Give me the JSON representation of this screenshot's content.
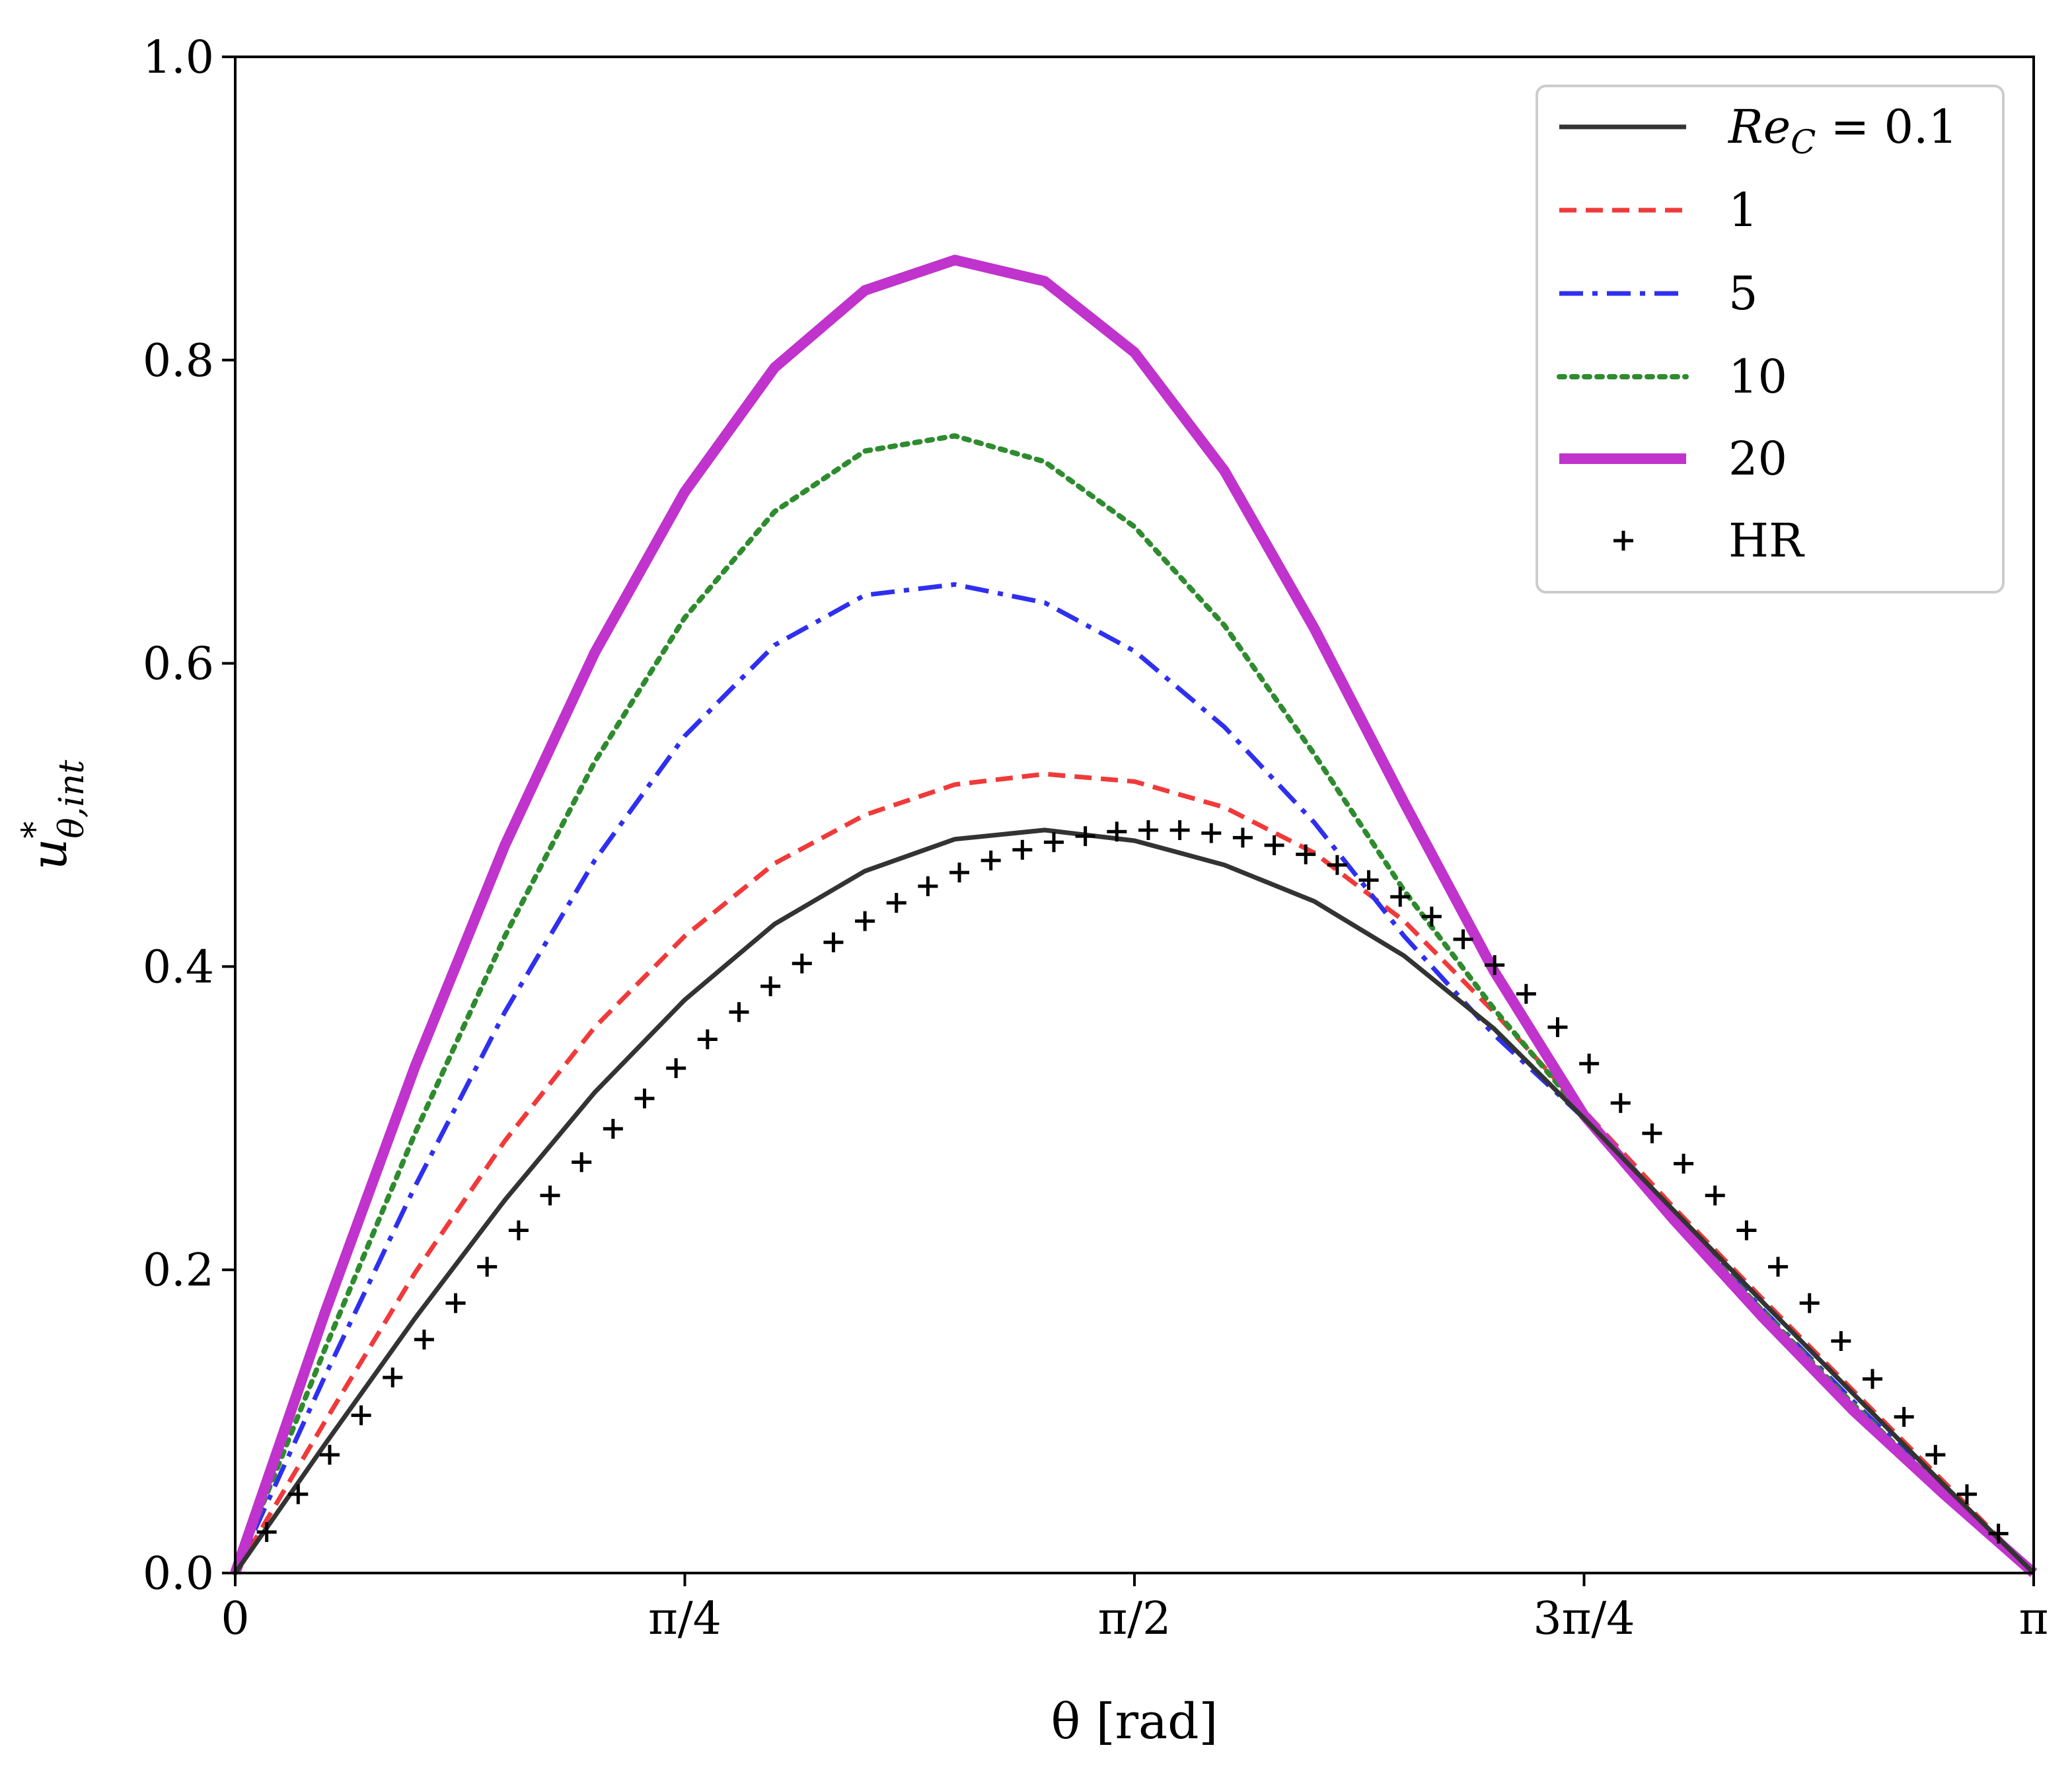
{
  "chart_data": {
    "type": "line",
    "title": "",
    "xlabel": "θ [rad]",
    "ylabel": "u*θ,int",
    "ylabel_parts": {
      "base": "u",
      "sup": "*",
      "sub": "θ,int"
    },
    "xlim": [
      0,
      3.14159
    ],
    "ylim": [
      0,
      1.0
    ],
    "grid": false,
    "legend_position": "top-right",
    "x_ticks": [
      {
        "value": 0,
        "label": "0"
      },
      {
        "value": 0.7854,
        "label": "π/4"
      },
      {
        "value": 1.5708,
        "label": "π/2"
      },
      {
        "value": 2.3562,
        "label": "3π/4"
      },
      {
        "value": 3.14159,
        "label": "π"
      }
    ],
    "y_ticks": [
      {
        "value": 0.0,
        "label": "0.0"
      },
      {
        "value": 0.2,
        "label": "0.2"
      },
      {
        "value": 0.4,
        "label": "0.4"
      },
      {
        "value": 0.6,
        "label": "0.6"
      },
      {
        "value": 0.8,
        "label": "0.8"
      },
      {
        "value": 1.0,
        "label": "1.0"
      }
    ],
    "series": [
      {
        "name": "Re_C = 0.1",
        "legend_label": "Re",
        "legend_sub": "C",
        "legend_suffix": " = 0.1",
        "color": "#333333",
        "style": "solid",
        "x": [
          0,
          0.157,
          0.314,
          0.471,
          0.628,
          0.785,
          0.942,
          1.1,
          1.257,
          1.414,
          1.571,
          1.728,
          1.885,
          2.042,
          2.199,
          2.356,
          2.513,
          2.67,
          2.827,
          2.985,
          3.1416
        ],
        "y": [
          0,
          0.085,
          0.168,
          0.246,
          0.317,
          0.378,
          0.428,
          0.463,
          0.484,
          0.49,
          0.483,
          0.467,
          0.443,
          0.407,
          0.359,
          0.3,
          0.239,
          0.178,
          0.118,
          0.058,
          0
        ]
      },
      {
        "name": "1",
        "legend_label": "1",
        "color": "#f03a3a",
        "style": "dashed",
        "x": [
          0,
          0.157,
          0.314,
          0.471,
          0.628,
          0.785,
          0.942,
          1.1,
          1.257,
          1.414,
          1.571,
          1.728,
          1.885,
          2.042,
          2.199,
          2.356,
          2.513,
          2.67,
          2.827,
          2.985,
          3.1416
        ],
        "y": [
          0,
          0.1,
          0.198,
          0.285,
          0.36,
          0.42,
          0.468,
          0.5,
          0.52,
          0.527,
          0.522,
          0.505,
          0.475,
          0.43,
          0.37,
          0.305,
          0.241,
          0.18,
          0.12,
          0.06,
          0
        ]
      },
      {
        "name": "5",
        "legend_label": "5",
        "color": "#2f2ff0",
        "style": "dashdot",
        "x": [
          0,
          0.157,
          0.314,
          0.471,
          0.628,
          0.785,
          0.942,
          1.1,
          1.257,
          1.414,
          1.571,
          1.728,
          1.885,
          2.042,
          2.199,
          2.356,
          2.513,
          2.67,
          2.827,
          2.985,
          3.1416
        ],
        "y": [
          0,
          0.13,
          0.255,
          0.37,
          0.47,
          0.552,
          0.612,
          0.645,
          0.652,
          0.64,
          0.608,
          0.558,
          0.495,
          0.42,
          0.355,
          0.3,
          0.237,
          0.173,
          0.113,
          0.055,
          0
        ]
      },
      {
        "name": "10",
        "legend_label": "10",
        "color": "#2e8b2e",
        "style": "dotted",
        "x": [
          0,
          0.157,
          0.314,
          0.471,
          0.628,
          0.785,
          0.942,
          1.1,
          1.257,
          1.414,
          1.571,
          1.728,
          1.885,
          2.042,
          2.199,
          2.356,
          2.513,
          2.67,
          2.827,
          2.985,
          3.1416
        ],
        "y": [
          0,
          0.148,
          0.29,
          0.42,
          0.535,
          0.63,
          0.7,
          0.74,
          0.75,
          0.733,
          0.69,
          0.625,
          0.54,
          0.45,
          0.372,
          0.302,
          0.236,
          0.172,
          0.111,
          0.054,
          0
        ]
      },
      {
        "name": "20",
        "legend_label": "20",
        "color": "#c033cc",
        "style": "solid-thick",
        "x": [
          0,
          0.157,
          0.314,
          0.471,
          0.628,
          0.785,
          0.942,
          1.1,
          1.257,
          1.414,
          1.571,
          1.728,
          1.885,
          2.042,
          2.199,
          2.356,
          2.513,
          2.67,
          2.827,
          2.985,
          3.1416
        ],
        "y": [
          0,
          0.172,
          0.334,
          0.48,
          0.607,
          0.713,
          0.795,
          0.846,
          0.866,
          0.852,
          0.805,
          0.727,
          0.623,
          0.508,
          0.397,
          0.302,
          0.233,
          0.168,
          0.107,
          0.052,
          0
        ]
      },
      {
        "name": "HR",
        "legend_label": "HR",
        "color": "#000000",
        "style": "plus-markers",
        "x": [
          0.055,
          0.11,
          0.165,
          0.22,
          0.275,
          0.33,
          0.385,
          0.44,
          0.495,
          0.55,
          0.605,
          0.66,
          0.715,
          0.77,
          0.825,
          0.88,
          0.935,
          0.99,
          1.045,
          1.1,
          1.155,
          1.21,
          1.265,
          1.32,
          1.375,
          1.43,
          1.485,
          1.54,
          1.595,
          1.65,
          1.705,
          1.76,
          1.815,
          1.87,
          1.925,
          1.98,
          2.035,
          2.09,
          2.145,
          2.2,
          2.255,
          2.31,
          2.365,
          2.42,
          2.475,
          2.53,
          2.585,
          2.64,
          2.695,
          2.75,
          2.805,
          2.86,
          2.915,
          2.97,
          3.025,
          3.08
        ],
        "y": [
          0.027,
          0.052,
          0.078,
          0.104,
          0.129,
          0.154,
          0.178,
          0.202,
          0.226,
          0.249,
          0.271,
          0.293,
          0.313,
          0.333,
          0.352,
          0.37,
          0.387,
          0.402,
          0.416,
          0.43,
          0.442,
          0.453,
          0.462,
          0.47,
          0.477,
          0.482,
          0.486,
          0.489,
          0.49,
          0.49,
          0.488,
          0.485,
          0.48,
          0.474,
          0.467,
          0.457,
          0.446,
          0.433,
          0.418,
          0.401,
          0.382,
          0.36,
          0.336,
          0.31,
          0.29,
          0.27,
          0.249,
          0.226,
          0.202,
          0.178,
          0.153,
          0.128,
          0.103,
          0.078,
          0.052,
          0.026
        ]
      }
    ]
  }
}
